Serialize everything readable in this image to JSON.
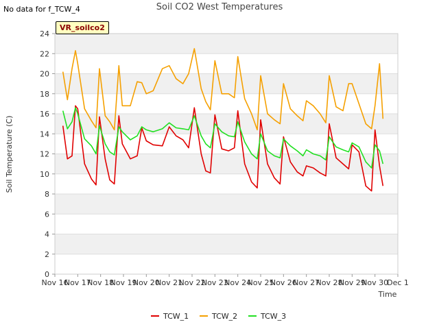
{
  "header": {
    "no_data_text": "No data for f_TCW_4",
    "title": "Soil CO2 West Temperatures",
    "badge": "VR_soilco2"
  },
  "chart_data": {
    "type": "line",
    "title": "Soil CO2 West Temperatures",
    "xlabel": "Time",
    "ylabel": "Soil Temperature (C)",
    "ylim": [
      0,
      24
    ],
    "yticks": [
      0,
      2,
      4,
      6,
      8,
      10,
      12,
      14,
      16,
      18,
      20,
      22,
      24
    ],
    "xlim": [
      0,
      15
    ],
    "xtick_labels": [
      "Nov 16",
      "Nov 17",
      "Nov 18",
      "Nov 19",
      "Nov 20",
      "Nov 21",
      "Nov 22",
      "Nov 23",
      "Nov 24",
      "Nov 25",
      "Nov 26",
      "Nov 27",
      "Nov 28",
      "Nov 29",
      "Nov 30",
      "Dec 1"
    ],
    "grid": true,
    "legend": "bottom",
    "x": [
      0.35,
      0.55,
      0.75,
      0.9,
      1.0,
      1.3,
      1.6,
      1.8,
      1.95,
      2.2,
      2.4,
      2.6,
      2.8,
      2.95,
      3.3,
      3.6,
      3.8,
      4.0,
      4.3,
      4.7,
      5.0,
      5.3,
      5.6,
      5.85,
      6.1,
      6.4,
      6.6,
      6.8,
      7.0,
      7.3,
      7.6,
      7.85,
      8.0,
      8.3,
      8.6,
      8.85,
      9.0,
      9.3,
      9.6,
      9.85,
      10.0,
      10.3,
      10.6,
      10.85,
      11.0,
      11.3,
      11.6,
      11.85,
      12.0,
      12.3,
      12.6,
      12.85,
      13.0,
      13.3,
      13.6,
      13.85,
      14.0,
      14.2,
      14.35
    ],
    "series": [
      {
        "name": "TCW_1",
        "color": "#e00000",
        "values": [
          14.8,
          11.5,
          11.8,
          16.8,
          16.5,
          11.0,
          9.5,
          8.9,
          15.7,
          11.5,
          9.4,
          9.0,
          15.8,
          13.0,
          11.5,
          11.8,
          14.6,
          13.3,
          12.9,
          12.8,
          14.7,
          13.8,
          13.4,
          12.6,
          16.6,
          12.0,
          10.3,
          10.1,
          15.9,
          12.5,
          12.3,
          12.6,
          16.3,
          11.0,
          9.2,
          8.6,
          15.4,
          11.0,
          9.6,
          9.0,
          13.7,
          11.2,
          10.2,
          9.8,
          10.8,
          10.6,
          10.1,
          9.8,
          15.0,
          11.6,
          11.0,
          10.5,
          12.9,
          12.2,
          8.8,
          8.3,
          14.4,
          10.8,
          8.8
        ]
      },
      {
        "name": "TCW_2",
        "color": "#f5a000",
        "values": [
          20.2,
          17.4,
          20.5,
          22.3,
          21.0,
          16.5,
          15.3,
          14.6,
          20.5,
          15.8,
          15.2,
          14.4,
          20.8,
          16.8,
          16.8,
          19.2,
          19.1,
          18.0,
          18.3,
          20.5,
          20.8,
          19.5,
          19.0,
          20.0,
          22.5,
          18.5,
          17.2,
          16.4,
          21.3,
          18.0,
          18.0,
          17.6,
          21.7,
          17.5,
          16.0,
          14.4,
          19.8,
          16.0,
          15.4,
          15.0,
          19.0,
          16.5,
          15.8,
          15.3,
          17.3,
          16.8,
          16.0,
          15.1,
          19.8,
          16.7,
          16.3,
          19.0,
          19.0,
          17.0,
          15.0,
          14.5,
          16.8,
          21.0,
          15.5
        ]
      },
      {
        "name": "TCW_3",
        "color": "#22e022",
        "values": [
          16.3,
          14.5,
          15.2,
          16.6,
          16.0,
          13.5,
          12.8,
          12.0,
          14.8,
          13.0,
          12.2,
          11.9,
          14.7,
          14.2,
          13.4,
          13.8,
          14.7,
          14.4,
          14.2,
          14.5,
          15.1,
          14.6,
          14.5,
          14.4,
          15.8,
          13.8,
          13.0,
          12.6,
          15.0,
          14.2,
          13.8,
          13.7,
          15.2,
          13.2,
          12.0,
          11.5,
          14.0,
          12.3,
          11.8,
          11.6,
          13.5,
          12.8,
          12.3,
          11.8,
          12.4,
          12.0,
          11.8,
          11.4,
          13.7,
          12.7,
          12.4,
          12.2,
          13.1,
          12.7,
          11.2,
          10.6,
          12.9,
          12.3,
          11.0
        ]
      }
    ]
  }
}
